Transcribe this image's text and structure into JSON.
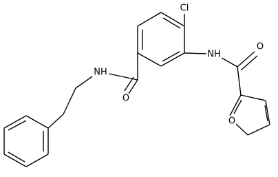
{
  "atoms": {
    "chlorine": "Cl",
    "nh_right": "NH",
    "o_right_carbonyl": "O",
    "o_furan": "O",
    "nh_left": "NH",
    "o_left_carbonyl": "O"
  }
}
